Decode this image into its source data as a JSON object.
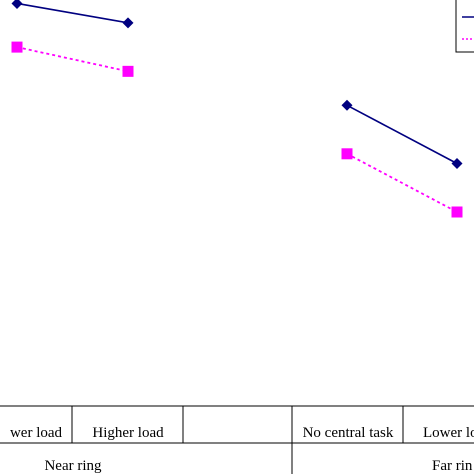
{
  "chart_data": {
    "type": "line",
    "groups": [
      {
        "label": "Near ring",
        "categories": [
          "No central task",
          "Lower load",
          "Higher load"
        ]
      },
      {
        "label": "Far ring",
        "categories": [
          "No central task",
          "Lower load",
          "Higher load"
        ]
      }
    ],
    "visible_category_labels": [
      "wer load",
      "Higher load",
      "No central task",
      "Lower lo"
    ],
    "visible_group_labels": [
      "Near ring",
      "Far rin"
    ],
    "series": [
      {
        "color": "#000080",
        "line": "solid",
        "marker": "diamond",
        "values": [
          [
            null,
            0.83,
            0.79
          ],
          [
            0.62,
            0.5,
            null
          ]
        ]
      },
      {
        "color": "#ff00ff",
        "line": "dotted",
        "marker": "square",
        "values": [
          [
            null,
            0.74,
            0.69
          ],
          [
            0.52,
            0.4,
            null
          ]
        ]
      }
    ],
    "legend_position": "top-right",
    "grid": false
  }
}
